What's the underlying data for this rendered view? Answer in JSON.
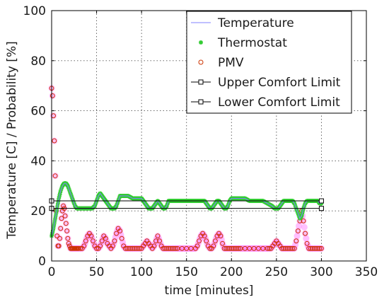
{
  "chart_data": {
    "type": "scatter",
    "title": "",
    "xlabel": "time [minutes]",
    "ylabel": "Temperature [C] /  Probability [%]",
    "xlim": [
      0,
      350
    ],
    "ylim": [
      0,
      100
    ],
    "xticks": [
      0,
      50,
      100,
      150,
      200,
      250,
      300,
      350
    ],
    "yticks": [
      0,
      20,
      40,
      60,
      80,
      100
    ],
    "grid": true,
    "legend_position": "top-right",
    "series": [
      {
        "name": "Temperature",
        "style": "line",
        "color": "#8080ff",
        "x": [
          0,
          2,
          4,
          6,
          8,
          10,
          12,
          14,
          16,
          18,
          20,
          22,
          24,
          26,
          28,
          30,
          35,
          40,
          45,
          48,
          50,
          52,
          54,
          56,
          58,
          60,
          62,
          64,
          66,
          68,
          70,
          72,
          74,
          76,
          78,
          80,
          85,
          90,
          95,
          100,
          102,
          104,
          106,
          108,
          110,
          112,
          114,
          116,
          118,
          120,
          122,
          124,
          126,
          128,
          130,
          135,
          140,
          145,
          150,
          155,
          160,
          165,
          170,
          172,
          174,
          176,
          178,
          180,
          182,
          184,
          186,
          188,
          190,
          192,
          194,
          196,
          198,
          200,
          205,
          210,
          215,
          220,
          225,
          230,
          235,
          240,
          245,
          248,
          250,
          252,
          254,
          256,
          258,
          260,
          262,
          264,
          266,
          268,
          270,
          272,
          274,
          276,
          278,
          280,
          282,
          284,
          286,
          288,
          290,
          292,
          294,
          296,
          298,
          300
        ],
        "y": [
          10,
          13,
          17,
          21,
          25,
          28,
          30,
          31,
          31,
          30,
          28,
          26,
          24,
          22,
          21,
          21,
          21,
          21,
          21,
          22,
          24,
          26,
          27,
          26,
          25,
          24,
          23,
          22,
          21,
          21,
          21,
          22,
          24,
          26,
          26,
          26,
          26,
          25,
          25,
          25,
          24,
          23,
          22,
          21,
          21,
          21,
          22,
          23,
          24,
          23,
          22,
          21,
          21,
          22,
          24,
          24,
          24,
          24,
          24,
          24,
          24,
          24,
          24,
          23,
          22,
          21,
          21,
          22,
          23,
          24,
          24,
          23,
          22,
          21,
          21,
          22,
          24,
          25,
          25,
          25,
          25,
          24,
          24,
          24,
          24,
          23,
          22,
          21,
          21,
          21,
          22,
          23,
          24,
          24,
          24,
          24,
          24,
          24,
          23,
          21,
          19,
          17,
          18,
          21,
          23,
          24,
          24,
          24,
          24,
          24,
          24,
          24,
          23,
          23
        ],
        "note": ""
      },
      {
        "name": "Thermostat",
        "style": "markers",
        "marker": "star",
        "color": "#33cc33",
        "follows": "Temperature"
      },
      {
        "name": "PMV",
        "style": "markers",
        "marker": "circle",
        "color": "#cc3300",
        "halo_color": "#ff8cff",
        "x": [
          0,
          1,
          2,
          3,
          4,
          5,
          6,
          7,
          8,
          9,
          10,
          11,
          12,
          13,
          14,
          15,
          16,
          17,
          18,
          19,
          20,
          21,
          22,
          23,
          24,
          25,
          26,
          27,
          28,
          29,
          30,
          32,
          34,
          36,
          38,
          40,
          42,
          44,
          46,
          48,
          50,
          52,
          54,
          56,
          58,
          60,
          62,
          64,
          66,
          68,
          70,
          72,
          74,
          76,
          78,
          80,
          82,
          84,
          86,
          88,
          90,
          92,
          94,
          96,
          98,
          100,
          102,
          104,
          106,
          108,
          110,
          112,
          114,
          116,
          118,
          120,
          122,
          124,
          126,
          128,
          130,
          132,
          134,
          136,
          138,
          140,
          145,
          150,
          155,
          160,
          162,
          164,
          166,
          168,
          170,
          172,
          174,
          176,
          178,
          180,
          182,
          184,
          186,
          188,
          190,
          192,
          194,
          196,
          198,
          200,
          202,
          204,
          206,
          208,
          210,
          215,
          220,
          225,
          230,
          235,
          240,
          242,
          244,
          246,
          248,
          250,
          252,
          254,
          256,
          258,
          260,
          262,
          264,
          266,
          268,
          270,
          272,
          274,
          276,
          278,
          280,
          282,
          284,
          286,
          288,
          290,
          292,
          294,
          296,
          298,
          300
        ],
        "y": [
          69,
          66,
          58,
          48,
          34,
          20,
          10,
          6,
          6,
          9,
          13,
          17,
          20,
          22,
          21,
          18,
          15,
          12,
          9,
          7,
          6,
          5,
          5,
          5,
          5,
          5,
          5,
          5,
          5,
          5,
          5,
          5,
          5,
          6,
          8,
          10,
          11,
          10,
          8,
          6,
          5,
          5,
          6,
          8,
          10,
          9,
          7,
          6,
          5,
          6,
          8,
          11,
          13,
          12,
          9,
          6,
          5,
          5,
          5,
          5,
          5,
          5,
          5,
          5,
          5,
          5,
          6,
          7,
          8,
          7,
          6,
          5,
          6,
          8,
          10,
          8,
          6,
          5,
          5,
          5,
          5,
          5,
          5,
          5,
          5,
          5,
          5,
          5,
          5,
          5,
          6,
          8,
          10,
          11,
          10,
          8,
          6,
          5,
          5,
          6,
          8,
          10,
          11,
          10,
          7,
          5,
          5,
          5,
          5,
          5,
          5,
          5,
          5,
          5,
          5,
          5,
          5,
          5,
          5,
          5,
          5,
          5,
          5,
          6,
          7,
          8,
          7,
          6,
          5,
          5,
          5,
          5,
          5,
          5,
          5,
          5,
          8,
          12,
          16,
          20,
          16,
          11,
          7,
          5,
          5,
          5,
          5,
          5,
          5,
          5,
          5
        ]
      },
      {
        "name": "Upper Comfort Limit",
        "style": "line-square",
        "color": "#000000",
        "x": [
          0,
          300
        ],
        "y": [
          24,
          24
        ]
      },
      {
        "name": "Lower Comfort Limit",
        "style": "line-square",
        "color": "#000000",
        "x": [
          0,
          300
        ],
        "y": [
          21,
          21
        ]
      }
    ]
  }
}
